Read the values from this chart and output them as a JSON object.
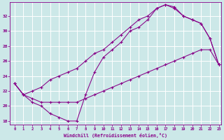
{
  "xlabel": "Windchill (Refroidissement éolien,°C)",
  "bg_color": "#cce8e8",
  "grid_color": "#ffffff",
  "line_color": "#880088",
  "xlim": [
    -0.5,
    23.3
  ],
  "ylim": [
    17.5,
    33.8
  ],
  "yticks": [
    18,
    20,
    22,
    24,
    26,
    28,
    30,
    32
  ],
  "xticks": [
    0,
    1,
    2,
    3,
    4,
    5,
    6,
    7,
    8,
    9,
    10,
    11,
    12,
    13,
    14,
    15,
    16,
    17,
    18,
    19,
    20,
    21,
    22,
    23
  ],
  "line1_x": [
    0,
    1,
    2,
    3,
    4,
    5,
    6,
    7,
    8,
    9,
    10,
    11,
    12,
    13,
    14,
    15,
    16,
    17,
    18,
    19,
    20,
    21,
    22,
    23
  ],
  "line1_y": [
    23.0,
    21.5,
    20.5,
    20.0,
    19.0,
    18.5,
    18.0,
    18.0,
    21.5,
    24.5,
    26.5,
    27.5,
    28.5,
    30.0,
    30.5,
    31.5,
    33.0,
    33.5,
    33.2,
    32.0,
    31.5,
    31.0,
    29.0,
    25.5
  ],
  "line2_x": [
    0,
    1,
    2,
    3,
    4,
    5,
    6,
    7,
    8,
    9,
    10,
    11,
    12,
    13,
    14,
    15,
    16,
    17,
    18,
    19,
    20,
    21,
    22,
    23
  ],
  "line2_y": [
    23.0,
    21.5,
    22.0,
    22.5,
    23.5,
    24.0,
    24.5,
    25.0,
    26.0,
    27.0,
    27.5,
    28.5,
    29.5,
    30.5,
    31.5,
    32.0,
    33.0,
    33.5,
    33.0,
    32.0,
    31.5,
    31.0,
    29.0,
    25.5
  ],
  "line3_x": [
    0,
    1,
    2,
    3,
    4,
    5,
    6,
    7,
    8,
    9,
    10,
    11,
    12,
    13,
    14,
    15,
    16,
    17,
    18,
    19,
    20,
    21,
    22,
    23
  ],
  "line3_y": [
    23.0,
    21.5,
    21.0,
    20.5,
    20.5,
    20.5,
    20.5,
    20.5,
    21.0,
    21.5,
    22.0,
    22.5,
    23.0,
    23.5,
    24.0,
    24.5,
    25.0,
    25.5,
    26.0,
    26.5,
    27.0,
    27.5,
    27.5,
    25.5
  ]
}
